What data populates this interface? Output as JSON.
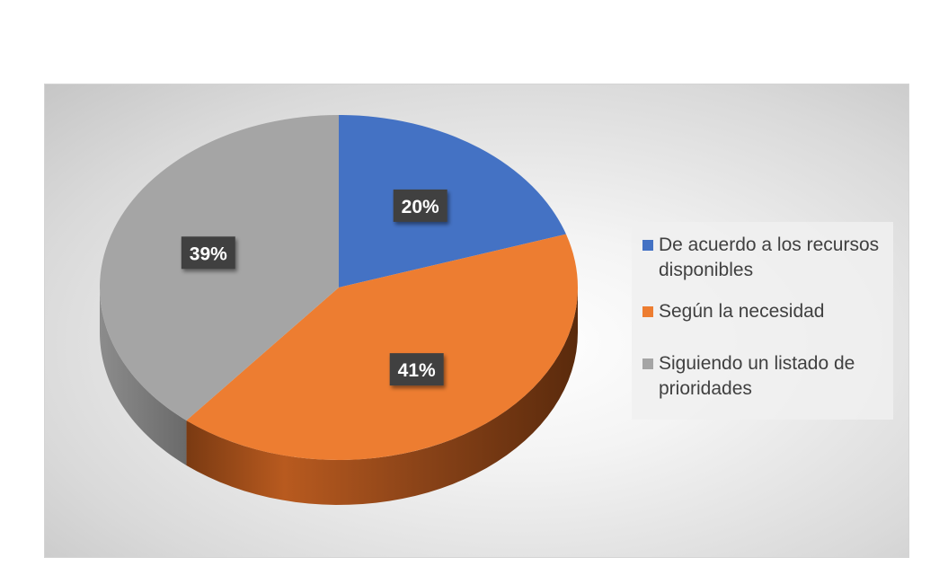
{
  "chart_data": {
    "type": "pie",
    "title": "",
    "categories": [
      "De acuerdo a los recursos disponibles",
      "Según la necesidad",
      "Siguiendo un listado de prioridades"
    ],
    "values": [
      20,
      41,
      39
    ],
    "data_labels": [
      "20%",
      "41%",
      "39%"
    ],
    "colors": [
      "#4472c4",
      "#ed7d31",
      "#a5a5a5"
    ],
    "style": "3d",
    "legend_position": "right"
  },
  "legend": {
    "items": [
      {
        "label": "De acuerdo a los recursos disponibles",
        "color": "#4472c4"
      },
      {
        "label": "Según la necesidad",
        "color": "#ed7d31"
      },
      {
        "label": "Siguiendo un listado de prioridades",
        "color": "#a5a5a5"
      }
    ]
  }
}
